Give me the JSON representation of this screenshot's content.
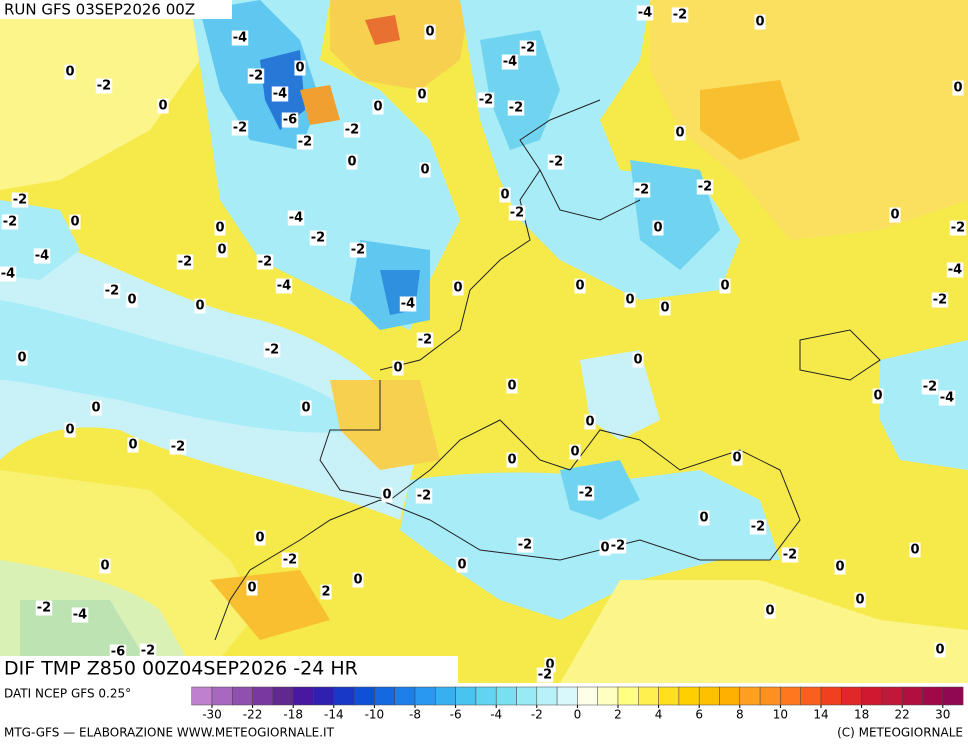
{
  "header": {
    "title": "RUN GFS 03SEP2026 00Z"
  },
  "map": {
    "caption": "DIF TMP Z850 00Z04SEP2026 -24 HR",
    "contour_labels": [
      -4,
      0,
      -2,
      -4,
      -6,
      -2,
      -2,
      -2,
      0,
      0,
      0,
      -4,
      -2,
      -2,
      -2,
      -2,
      -4,
      0,
      0,
      0,
      -2,
      0,
      -2,
      -2,
      0,
      0,
      -4,
      -2,
      -2,
      0,
      0,
      0,
      -2,
      -2,
      -2,
      -2,
      0,
      -4,
      -4,
      -2,
      -2,
      0,
      -4,
      -4,
      -2,
      0,
      0,
      -2,
      -2,
      0,
      0,
      0,
      0,
      0,
      0,
      0,
      0,
      0,
      -2,
      -4,
      -2,
      -2,
      -4,
      0,
      0,
      0,
      0,
      0,
      -2,
      0,
      0,
      0,
      0,
      -2,
      0,
      -2,
      0,
      -2,
      -2,
      0,
      -2,
      0,
      -2,
      0,
      0,
      0,
      2,
      0,
      0,
      -2,
      0,
      0,
      0,
      -2,
      -4,
      -6,
      -2,
      0,
      -2,
      0,
      0,
      0
    ]
  },
  "legend": {
    "source": "DATI NCEP GFS 0.25°",
    "ticks": [
      -30,
      -22,
      -18,
      -14,
      -10,
      -8,
      -6,
      -4,
      -2,
      0,
      2,
      4,
      6,
      8,
      10,
      14,
      18,
      22,
      30
    ],
    "colors": [
      "#c080d0",
      "#a868c0",
      "#9050b0",
      "#7838a0",
      "#602890",
      "#4818a0",
      "#3020b0",
      "#1838c8",
      "#1050d8",
      "#1468e0",
      "#1c80e8",
      "#2898f0",
      "#38b0f0",
      "#48c4f0",
      "#60d4f0",
      "#78e0f0",
      "#98eaf4",
      "#b8f2f8",
      "#d8f8fc",
      "#ffffe8",
      "#ffffc0",
      "#ffff80",
      "#fff050",
      "#ffe020",
      "#ffd000",
      "#ffc000",
      "#ffb000",
      "#ffa020",
      "#ff9020",
      "#ff7820",
      "#f86020",
      "#f04020",
      "#e02828",
      "#d01830",
      "#c01838",
      "#b01040",
      "#a00848",
      "#900850"
    ]
  },
  "footer": {
    "left": "MTG-GFS — ELABORAZIONE WWW.METEOGIORNALE.IT",
    "right": "(C) METEOGIORNALE"
  }
}
